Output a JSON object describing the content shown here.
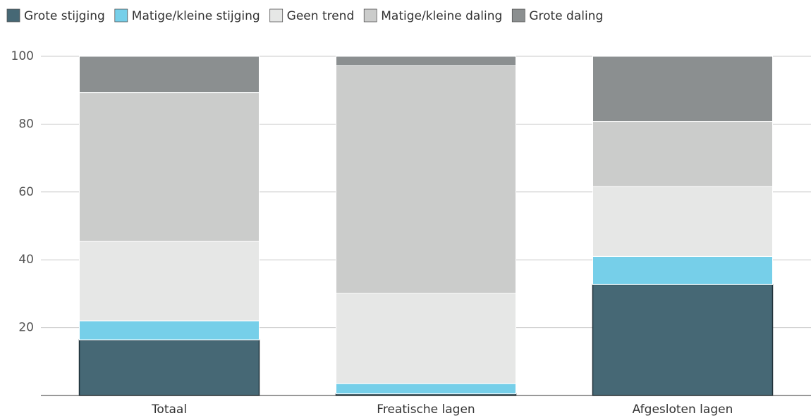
{
  "chart_data": {
    "type": "stacked_bar",
    "categories": [
      "Totaal",
      "Freatische lagen",
      "Afgesloten lagen"
    ],
    "series": [
      {
        "name": "Grote stijging",
        "color": "#466875",
        "values": [
          16.4,
          0.5,
          32.7
        ]
      },
      {
        "name": "Matige/kleine stijging",
        "color": "#76cfe9",
        "values": [
          5.6,
          3.0,
          8.3
        ]
      },
      {
        "name": "Geen trend",
        "color": "#e6e7e6",
        "values": [
          23.4,
          26.6,
          20.6
        ]
      },
      {
        "name": "Matige/kleine daling",
        "color": "#cbcccb",
        "values": [
          43.9,
          67.1,
          19.2
        ]
      },
      {
        "name": "Grote daling",
        "color": "#8b8f90",
        "values": [
          10.7,
          2.8,
          19.2
        ]
      }
    ],
    "ylim": [
      0,
      100
    ],
    "yticks": [
      20,
      40,
      60,
      80,
      100
    ],
    "grid": true,
    "legend": "top-left"
  }
}
